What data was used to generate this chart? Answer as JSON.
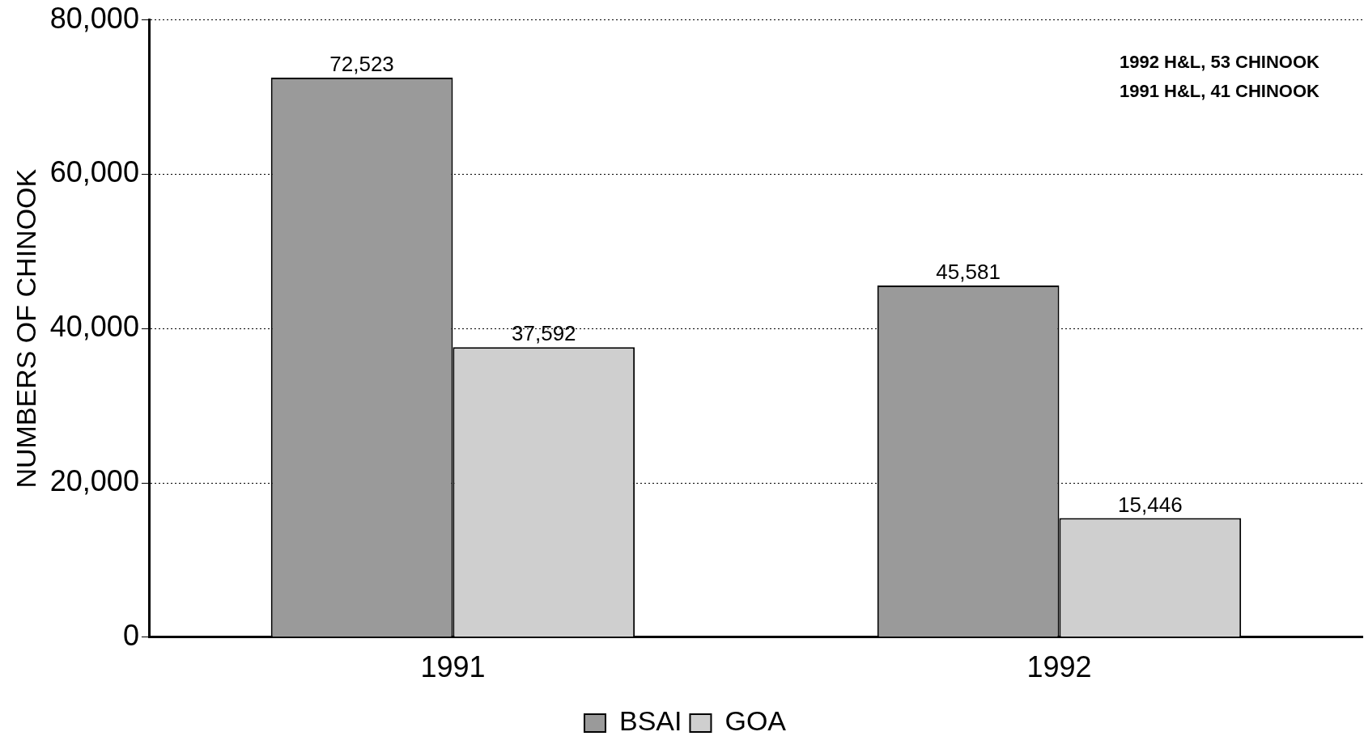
{
  "chart_data": {
    "type": "bar",
    "ylabel": "NUMBERS OF CHINOOK",
    "categories": [
      "1991",
      "1992"
    ],
    "series": [
      {
        "name": "BSAI",
        "color": "#9a9a9a",
        "values": [
          72523,
          45581
        ],
        "value_labels": [
          "72,523",
          "45,581"
        ]
      },
      {
        "name": "GOA",
        "color": "#cfcfcf",
        "values": [
          37592,
          15446
        ],
        "value_labels": [
          "37,592",
          "15,446"
        ]
      }
    ],
    "ylim": [
      0,
      80000
    ],
    "yticks": [
      {
        "value": 0,
        "label": "0"
      },
      {
        "value": 20000,
        "label": "20,000"
      },
      {
        "value": 40000,
        "label": "40,000"
      },
      {
        "value": 60000,
        "label": "60,000"
      },
      {
        "value": 80000,
        "label": "80,000"
      }
    ],
    "grid": "y",
    "legend": "bottom",
    "annotations": [
      "1992 H&L, 53 CHINOOK",
      "1991 H&L, 41 CHINOOK"
    ]
  }
}
